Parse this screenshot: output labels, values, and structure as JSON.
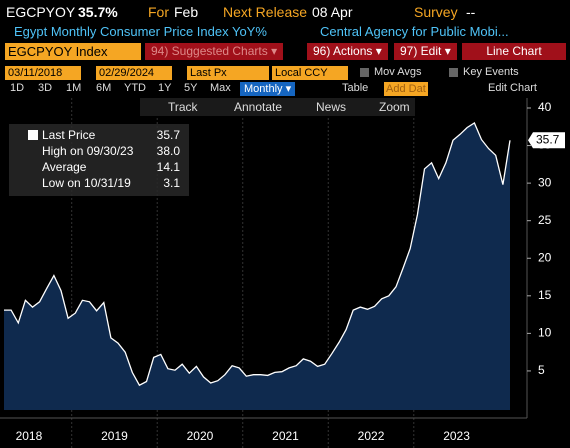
{
  "header": {
    "ticker": "EGCPYOY",
    "value": "35.7%",
    "for_label": "For",
    "period": "Feb",
    "next_label": "Next Release",
    "next_date": "08 Apr",
    "survey_label": "Survey",
    "survey_value": "--",
    "description": "Egypt Monthly Consumer Price Index YoY%",
    "source": "Central Agency for Public Mobi..."
  },
  "toolbar": {
    "security": "EGCPYOY Index",
    "buttons": [
      "94) Suggested Charts ▾",
      "96) Actions ▾",
      "97) Edit ▾",
      "Line Chart"
    ]
  },
  "settings": {
    "start": "03/11/2018",
    "end": "02/29/2024",
    "field": "Last Px",
    "currency": "Local CCY",
    "options": [
      "Mov Avgs",
      "Key Events"
    ]
  },
  "ranges": [
    "1D",
    "3D",
    "1M",
    "6M",
    "YTD",
    "1Y",
    "5Y",
    "Max"
  ],
  "frequency": "Monthly ▾",
  "tools": [
    "Table",
    "Add Dat",
    "Edit Chart"
  ],
  "chart_tools": [
    "Track",
    "Annotate",
    "News",
    "Zoom"
  ],
  "legend": {
    "rows": [
      {
        "label": "Last Price",
        "value": "35.7"
      },
      {
        "label": "High on 09/30/23",
        "value": "38.0"
      },
      {
        "label": "Average",
        "value": "14.1"
      },
      {
        "label": "Low on 10/31/19",
        "value": "3.1"
      }
    ]
  },
  "chart_data": {
    "type": "area",
    "x_labels": [
      "2018",
      "2019",
      "2020",
      "2021",
      "2022",
      "2023"
    ],
    "values": [
      13.1,
      13.1,
      11.4,
      14.4,
      13.5,
      14.2,
      16.0,
      17.7,
      15.7,
      12.0,
      12.7,
      14.4,
      14.2,
      13.0,
      14.1,
      9.4,
      8.7,
      7.5,
      4.8,
      3.1,
      3.6,
      6.8,
      7.2,
      5.3,
      5.1,
      5.9,
      4.7,
      5.6,
      4.2,
      3.4,
      3.7,
      4.5,
      5.7,
      5.4,
      4.3,
      4.5,
      4.5,
      4.4,
      4.8,
      4.9,
      5.4,
      5.7,
      6.6,
      6.3,
      5.6,
      5.9,
      7.3,
      8.8,
      10.5,
      13.1,
      13.5,
      13.2,
      13.6,
      14.6,
      15.0,
      16.2,
      18.7,
      21.3,
      25.8,
      31.9,
      32.7,
      30.6,
      32.7,
      35.7,
      36.5,
      37.4,
      38.0,
      35.8,
      34.6,
      33.7,
      29.8,
      35.7
    ],
    "color": "#ffffff",
    "fill": "#0f2a4e",
    "ylim": [
      0,
      41
    ],
    "yticks": [
      5,
      10,
      15,
      20,
      25,
      30,
      35,
      40
    ]
  }
}
